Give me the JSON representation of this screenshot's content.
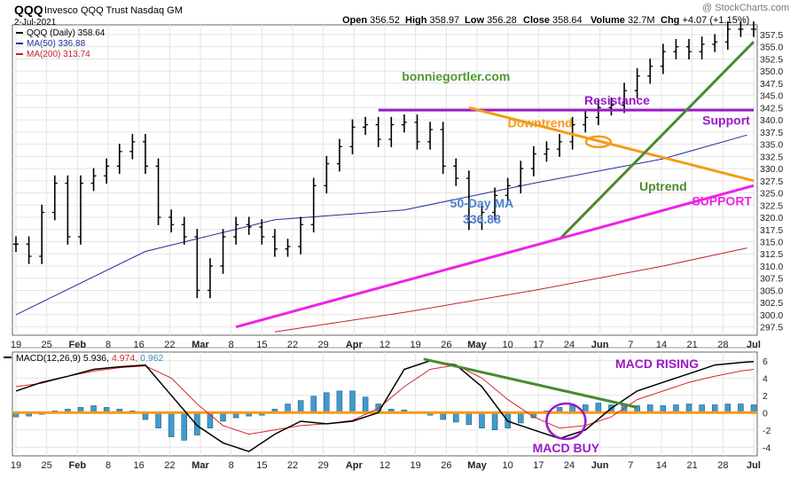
{
  "header": {
    "symbol": "QQQ",
    "name": "Invesco QQQ Trust Nasdaq GM",
    "date": "2-Jul-2021",
    "watermark": "@ StockCharts.com",
    "ohlc": [
      {
        "label": "Open",
        "value": "356.52"
      },
      {
        "label": "High",
        "value": "358.97"
      },
      {
        "label": "Low",
        "value": "356.28"
      },
      {
        "label": "Close",
        "value": "358.64"
      },
      {
        "label": "Volume",
        "value": "32.7M"
      },
      {
        "label": "Chg",
        "value": "+4.07 (+1.15%)"
      }
    ]
  },
  "legend": [
    {
      "text": "QQQ (Daily) 358.64",
      "color": "#000000",
      "icon": "price-bar-icon"
    },
    {
      "text": "MA(50) 336.88",
      "color": "#1f2f9a",
      "icon": "line-icon"
    },
    {
      "text": "MA(200) 313.74",
      "color": "#c0262d",
      "icon": "line-icon"
    }
  ],
  "macd_legend": {
    "label": "MACD(12,26,9)",
    "macd": "5.936",
    "signal": "4.974",
    "hist": "0.962",
    "macd_color": "#000000",
    "signal_color": "#d9262a",
    "hist_color": "#3a8fc0"
  },
  "colors": {
    "trend_green": "#4a8a2e",
    "downtrend_orange": "#f59a17",
    "support_magenta": "#ee22e6",
    "resistance_purple": "#9a19c8",
    "ma50_blue": "#1f2f9a",
    "ma200_red": "#c0262d",
    "histogram_blue": "#3f9bcf",
    "annotation_blue": "#4c7fd0",
    "site_green": "#4f9a2e"
  },
  "chart_data": [
    {
      "type": "line",
      "title": "QQQ (Daily) 358.64",
      "x_tick_labels": [
        "19",
        "25",
        "Feb",
        "8",
        "16",
        "22",
        "Mar",
        "8",
        "15",
        "22",
        "29",
        "Apr",
        "12",
        "19",
        "26",
        "May",
        "10",
        "17",
        "24",
        "Jun",
        "7",
        "14",
        "21",
        "28",
        "Jul"
      ],
      "y_ticks": [
        297.5,
        300.0,
        302.5,
        305.0,
        307.5,
        310.0,
        312.5,
        315.0,
        317.5,
        320.0,
        322.5,
        325.0,
        327.5,
        330.0,
        332.5,
        335.0,
        337.5,
        340.0,
        342.5,
        345.0,
        347.5,
        350.0,
        352.5,
        355.0,
        357.5
      ],
      "ylim": [
        295.8,
        359.5
      ],
      "x_range_trading_days": [
        0,
        114
      ],
      "grid": true,
      "axis_position": "right",
      "series": [
        {
          "name": "QQQ (Daily)",
          "kind": "ohlc-close",
          "x": [
            0,
            2,
            4,
            6,
            8,
            10,
            12,
            14,
            16,
            18,
            20,
            22,
            24,
            26,
            28,
            30,
            32,
            34,
            36,
            38,
            40,
            42,
            44,
            46,
            48,
            50,
            52,
            54,
            56,
            58,
            60,
            62,
            64,
            66,
            68,
            70,
            72,
            74,
            76,
            78,
            80,
            82,
            84,
            86,
            88,
            90,
            92,
            94,
            96,
            98,
            100,
            102,
            104,
            106,
            108,
            110,
            112,
            114
          ],
          "y": [
            314.5,
            312.0,
            321.0,
            327.0,
            316.0,
            327.0,
            328.5,
            330.5,
            333.5,
            335.5,
            330.5,
            320.0,
            318.5,
            316.0,
            305.0,
            310.0,
            316.0,
            318.5,
            318.0,
            316.0,
            313.5,
            314.0,
            318.5,
            326.5,
            331.0,
            334.5,
            338.5,
            339.0,
            336.0,
            339.0,
            339.5,
            335.5,
            338.0,
            330.5,
            328.0,
            319.0,
            321.0,
            324.5,
            326.5,
            330.0,
            333.0,
            334.0,
            335.5,
            339.0,
            340.5,
            342.5,
            343.0,
            346.0,
            349.0,
            351.0,
            354.0,
            355.0,
            354.0,
            355.5,
            356.0,
            358.6,
            358.6,
            358.6
          ]
        },
        {
          "name": "MA(50)",
          "y_points": [
            [
              0,
              300.0
            ],
            [
              20,
              313.0
            ],
            [
              40,
              319.5
            ],
            [
              60,
              321.5
            ],
            [
              80,
              327.0
            ],
            [
              100,
              332.0
            ],
            [
              113,
              336.9
            ]
          ]
        },
        {
          "name": "MA(200)",
          "y_points": [
            [
              40,
              296.5
            ],
            [
              60,
              300.5
            ],
            [
              80,
              305.0
            ],
            [
              100,
              310.0
            ],
            [
              113,
              313.7
            ]
          ]
        }
      ],
      "annotations": [
        {
          "text": "bonniegortler.com",
          "kind": "label",
          "at": [
            68,
            348.0
          ]
        },
        {
          "text": "Resistance",
          "kind": "hline",
          "y": 342.0,
          "from_x": 56,
          "to_x": 114
        },
        {
          "text": "Support",
          "kind": "label",
          "at": [
            112,
            339.0
          ]
        },
        {
          "text": "Downtrend",
          "kind": "line",
          "from": [
            70,
            342.5
          ],
          "to": [
            114,
            327.5
          ],
          "label_at": [
            81,
            338.5
          ]
        },
        {
          "text": "Uptrend",
          "kind": "line",
          "from": [
            84,
            315.5
          ],
          "to": [
            114,
            356.0
          ],
          "label_at": [
            100,
            325.5
          ]
        },
        {
          "text": "SUPPORT",
          "kind": "line",
          "from": [
            34,
            297.5
          ],
          "to": [
            114,
            326.5
          ],
          "label_at": [
            113,
            322.5
          ]
        },
        {
          "text": "50-Day MA\n336.88",
          "kind": "label",
          "at": [
            72,
            322.0
          ]
        }
      ]
    },
    {
      "type": "line",
      "title": "MACD(12,26,9)",
      "y_ticks": [
        -4,
        -2,
        0,
        2,
        4,
        6
      ],
      "ylim": [
        -5.0,
        7.0
      ],
      "grid": true,
      "series": [
        {
          "name": "MACD",
          "x": [
            0,
            4,
            8,
            12,
            16,
            20,
            24,
            28,
            32,
            36,
            40,
            44,
            48,
            52,
            56,
            60,
            64,
            68,
            72,
            76,
            80,
            84,
            88,
            92,
            96,
            100,
            104,
            108,
            112,
            114
          ],
          "y": [
            2.5,
            3.5,
            4.2,
            5.0,
            5.3,
            5.5,
            2.0,
            -1.5,
            -3.5,
            -4.5,
            -2.5,
            -1.0,
            -1.3,
            -1.0,
            0.0,
            5.0,
            6.0,
            5.5,
            3.0,
            -1.0,
            -2.0,
            -3.0,
            -2.0,
            0.5,
            2.5,
            3.5,
            4.5,
            5.5,
            5.8,
            5.9
          ]
        },
        {
          "name": "Signal",
          "x": [
            0,
            4,
            8,
            12,
            16,
            20,
            24,
            28,
            32,
            36,
            40,
            44,
            48,
            52,
            56,
            60,
            64,
            68,
            72,
            76,
            80,
            84,
            88,
            92,
            96,
            100,
            104,
            108,
            112,
            114
          ],
          "y": [
            3.0,
            3.4,
            4.2,
            4.8,
            5.2,
            5.4,
            4.0,
            1.0,
            -1.5,
            -2.5,
            -2.0,
            -1.5,
            -1.3,
            -0.9,
            0.5,
            3.0,
            5.0,
            5.5,
            4.0,
            1.5,
            -0.5,
            -1.8,
            -1.5,
            -0.5,
            1.5,
            2.5,
            3.5,
            4.2,
            4.8,
            5.0
          ]
        },
        {
          "name": "Histogram",
          "kind": "bar",
          "x": [
            0,
            2,
            4,
            6,
            8,
            10,
            12,
            14,
            16,
            18,
            20,
            22,
            24,
            26,
            28,
            30,
            32,
            34,
            36,
            38,
            40,
            42,
            44,
            46,
            48,
            50,
            52,
            54,
            56,
            58,
            60,
            62,
            64,
            66,
            68,
            70,
            72,
            74,
            76,
            78,
            80,
            82,
            84,
            86,
            88,
            90,
            92,
            94,
            96,
            98,
            100,
            102,
            104,
            106,
            108,
            110,
            112,
            114
          ],
          "y": [
            -0.5,
            -0.4,
            -0.2,
            0.2,
            0.4,
            0.6,
            0.8,
            0.6,
            0.4,
            0.2,
            -0.8,
            -1.8,
            -2.8,
            -3.2,
            -2.6,
            -1.8,
            -1.0,
            -0.6,
            -0.4,
            -0.3,
            0.4,
            1.0,
            1.4,
            1.9,
            2.3,
            2.5,
            2.5,
            1.8,
            1.0,
            0.4,
            0.3,
            0.1,
            -0.3,
            -0.8,
            -1.1,
            -1.4,
            -1.8,
            -2.0,
            -1.8,
            -1.2,
            -0.6,
            0.2,
            0.6,
            0.8,
            0.9,
            1.1,
            0.9,
            1.0,
            0.8,
            0.9,
            0.8,
            0.9,
            1.0,
            0.9,
            0.9,
            1.0,
            1.0,
            0.9
          ]
        }
      ],
      "annotations": [
        {
          "text": "MACD RISING",
          "kind": "label"
        },
        {
          "text": "MACD BUY",
          "kind": "label"
        }
      ]
    }
  ]
}
